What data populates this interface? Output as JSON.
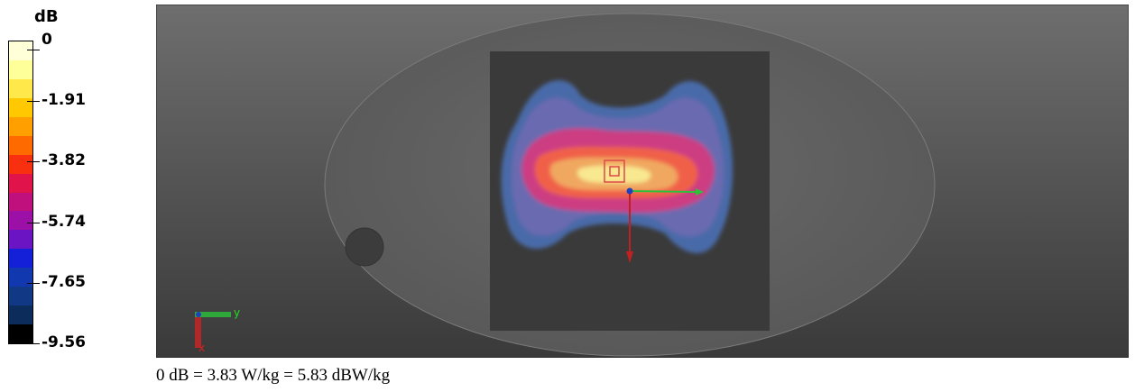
{
  "chart_data": {
    "type": "heatmap",
    "title": "",
    "colorbar": {
      "unit": "dB",
      "range": [
        -9.56,
        0
      ],
      "ticks": [
        "0",
        "-1.91",
        "-3.82",
        "-5.74",
        "-7.65",
        "-9.56"
      ],
      "colors": [
        "#ffffd8",
        "#ffff99",
        "#ffe84a",
        "#ffc800",
        "#ffa000",
        "#ff6a00",
        "#f83010",
        "#e0144a",
        "#c0107e",
        "#9c10a8",
        "#6a14c4",
        "#1420d8",
        "#1238b0",
        "#103884",
        "#0c2c5c",
        "#000000"
      ]
    },
    "field_map": {
      "levels_db": [
        -9.56,
        -7.65,
        -5.74,
        -3.82,
        -1.91,
        -0.5
      ],
      "level_colors": [
        "#4a6aa8",
        "#6a6ab0",
        "#cc3c82",
        "#f06048",
        "#f0a860",
        "#f8e890"
      ],
      "peak_db": 0
    },
    "axes_indicator": {
      "x_label": "x",
      "y_label": "y"
    },
    "caption": "0 dB = 3.83 W/kg = 5.83 dBW/kg"
  }
}
